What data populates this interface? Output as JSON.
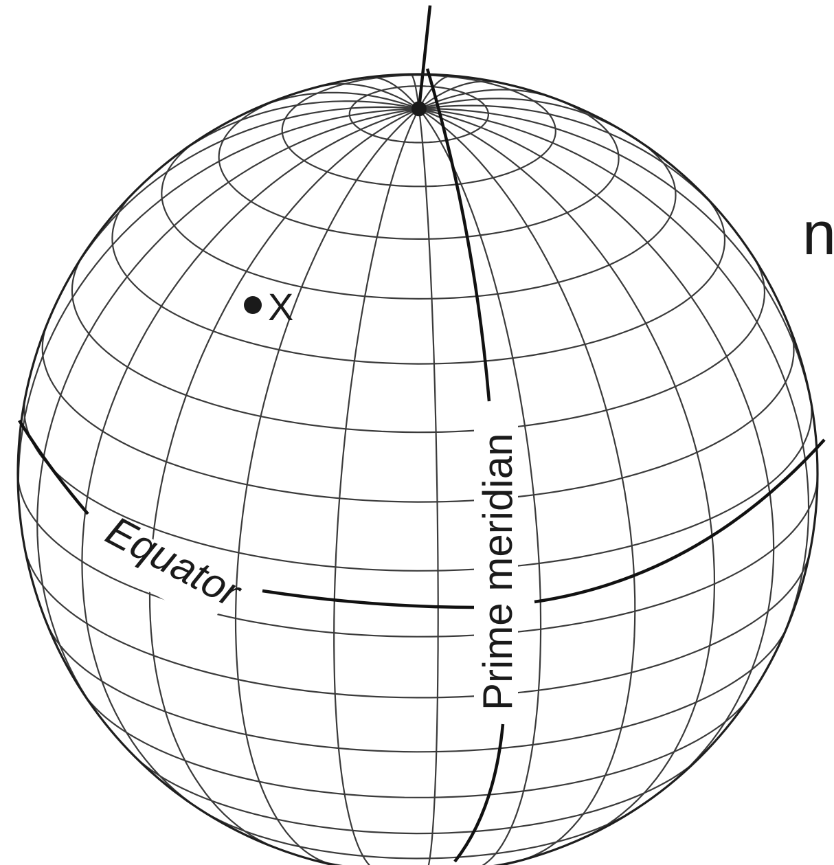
{
  "labels": {
    "equator": "Equator",
    "prime_meridian": "Prime meridian",
    "point": "X",
    "edge_fragment": "n"
  }
}
